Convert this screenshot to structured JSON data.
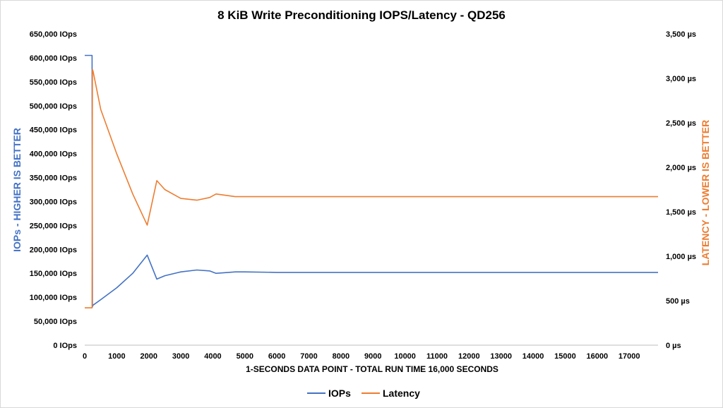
{
  "chart_data": {
    "type": "line",
    "title": "8 KiB Write Preconditioning IOPS/Latency - QD256",
    "xlabel": "1-SECONDS DATA POINT - TOTAL RUN TIME 16,000 SECONDS",
    "ylabel_left": "IOPs - HIGHER IS BETTER",
    "ylabel_right": "LATENCY - LOWER IS BETTER",
    "x_ticks": [
      "0",
      "1000",
      "2000",
      "3000",
      "4000",
      "5000",
      "6000",
      "7000",
      "8000",
      "9000",
      "10000",
      "11000",
      "12000",
      "13000",
      "14000",
      "15000",
      "16000",
      "17000"
    ],
    "xlim": [
      0,
      17900
    ],
    "y_left_ticks": [
      "0 IOps",
      "50,000 IOps",
      "100,000 IOps",
      "150,000 IOps",
      "200,000 IOps",
      "250,000 IOps",
      "300,000 IOps",
      "350,000 IOps",
      "400,000 IOps",
      "450,000 IOps",
      "500,000 IOps",
      "550,000 IOps",
      "600,000 IOps",
      "650,000 IOps"
    ],
    "y_left_lim": [
      0,
      650000
    ],
    "y_right_ticks": [
      "0 µs",
      "500 µs",
      "1,000 µs",
      "1,500 µs",
      "2,000 µs",
      "2,500 µs",
      "3,000 µs",
      "3,500 µs"
    ],
    "y_right_lim": [
      0,
      3500
    ],
    "grid": false,
    "legend_position": "bottom",
    "series": [
      {
        "name": "IOPs",
        "axis": "left",
        "color": "#4472c4",
        "x": [
          0,
          230,
          240,
          250,
          500,
          1000,
          1500,
          1950,
          2250,
          2500,
          3000,
          3500,
          3900,
          4100,
          4300,
          4700,
          5000,
          6000,
          8000,
          10000,
          12000,
          14000,
          16000,
          17900
        ],
        "y": [
          605000,
          605000,
          80000,
          83000,
          95000,
          120000,
          150000,
          188000,
          138000,
          145000,
          153000,
          157000,
          155000,
          150000,
          151000,
          153000,
          153000,
          152000,
          152000,
          152000,
          152000,
          152000,
          152000,
          152000
        ]
      },
      {
        "name": "Latency",
        "axis": "right",
        "color": "#ed7d31",
        "x": [
          0,
          230,
          240,
          260,
          500,
          1000,
          1500,
          1950,
          2250,
          2500,
          3000,
          3500,
          3900,
          4100,
          4300,
          4700,
          5000,
          6000,
          8000,
          10000,
          12000,
          14000,
          16000,
          17900
        ],
        "y": [
          420,
          420,
          3100,
          3080,
          2650,
          2150,
          1700,
          1350,
          1850,
          1750,
          1650,
          1630,
          1660,
          1700,
          1690,
          1670,
          1670,
          1670,
          1670,
          1670,
          1670,
          1670,
          1670,
          1670
        ]
      }
    ]
  }
}
